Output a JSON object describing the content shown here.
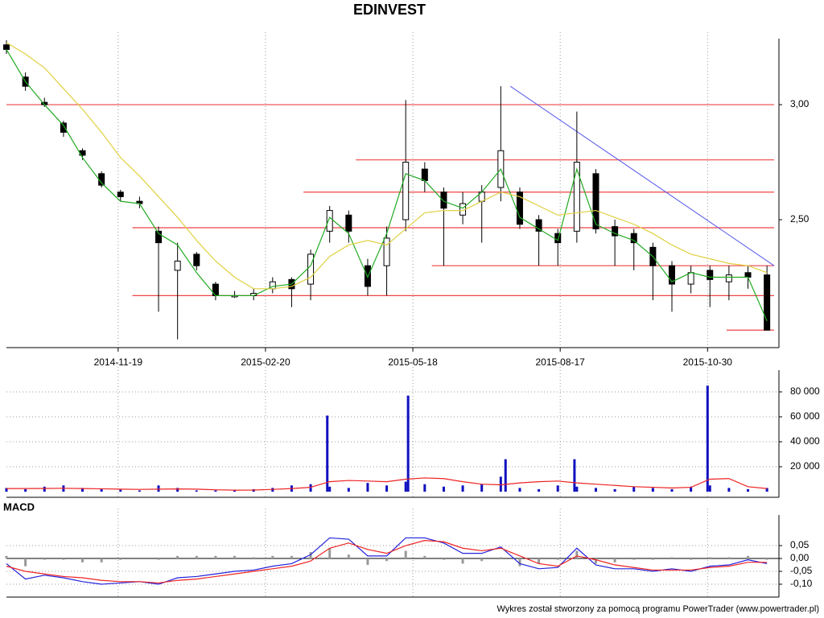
{
  "chart_data": [
    {
      "type": "candlestick",
      "title": "EDINVEST",
      "x": [
        0,
        8,
        16,
        24,
        32,
        40,
        48,
        56,
        64,
        72,
        80,
        88,
        96,
        104,
        112,
        120,
        128,
        136,
        144,
        152,
        160,
        168,
        176,
        184,
        192,
        200,
        208,
        216,
        224,
        232,
        240,
        248,
        256,
        264,
        272,
        280,
        288,
        296,
        304,
        312,
        320
      ],
      "open": [
        3.26,
        3.12,
        3.01,
        2.92,
        2.8,
        2.7,
        2.62,
        2.58,
        2.45,
        2.28,
        2.35,
        2.22,
        2.17,
        2.17,
        2.2,
        2.24,
        2.22,
        2.45,
        2.52,
        2.3,
        2.3,
        2.5,
        2.72,
        2.62,
        2.52,
        2.58,
        2.64,
        2.62,
        2.5,
        2.44,
        2.45,
        2.7,
        2.47,
        2.44,
        2.38,
        2.3,
        2.22,
        2.28,
        2.23,
        2.27,
        2.26
      ],
      "high": [
        3.28,
        3.14,
        3.03,
        2.93,
        2.81,
        2.71,
        2.63,
        2.6,
        2.47,
        2.4,
        2.36,
        2.23,
        2.19,
        2.2,
        2.25,
        2.25,
        2.37,
        2.56,
        2.54,
        2.33,
        2.47,
        3.02,
        2.75,
        2.64,
        2.62,
        2.65,
        3.08,
        2.64,
        2.52,
        2.46,
        2.97,
        2.72,
        2.5,
        2.46,
        2.4,
        2.32,
        2.3,
        2.3,
        2.3,
        2.3,
        2.3
      ],
      "low": [
        3.22,
        3.06,
        2.99,
        2.86,
        2.76,
        2.64,
        2.58,
        2.55,
        2.1,
        1.98,
        2.28,
        2.15,
        2.16,
        2.15,
        2.18,
        2.12,
        2.15,
        2.4,
        2.4,
        2.17,
        2.17,
        2.45,
        2.62,
        2.3,
        2.48,
        2.4,
        2.58,
        2.46,
        2.3,
        2.3,
        2.4,
        2.44,
        2.3,
        2.28,
        2.15,
        2.1,
        2.18,
        2.12,
        2.15,
        2.2,
        2.02
      ],
      "close": [
        3.24,
        3.08,
        3.0,
        2.88,
        2.78,
        2.65,
        2.6,
        2.57,
        2.4,
        2.32,
        2.3,
        2.17,
        2.17,
        2.18,
        2.23,
        2.2,
        2.35,
        2.54,
        2.45,
        2.21,
        2.42,
        2.75,
        2.67,
        2.55,
        2.57,
        2.62,
        2.8,
        2.48,
        2.45,
        2.4,
        2.75,
        2.46,
        2.43,
        2.4,
        2.3,
        2.22,
        2.27,
        2.24,
        2.26,
        2.25,
        2.02
      ],
      "lines": [
        {
          "color": "#22aa22",
          "values": [
            3.24,
            3.1,
            3.0,
            2.91,
            2.77,
            2.66,
            2.58,
            2.57,
            2.44,
            2.39,
            2.27,
            2.17,
            2.17,
            2.17,
            2.21,
            2.22,
            2.3,
            2.51,
            2.44,
            2.25,
            2.44,
            2.7,
            2.67,
            2.58,
            2.55,
            2.62,
            2.72,
            2.51,
            2.46,
            2.41,
            2.72,
            2.48,
            2.44,
            2.41,
            2.34,
            2.23,
            2.27,
            2.25,
            2.25,
            2.25,
            2.06
          ]
        },
        {
          "color": "#e0d040",
          "values": [
            3.27,
            3.22,
            3.16,
            3.07,
            2.98,
            2.88,
            2.77,
            2.69,
            2.6,
            2.51,
            2.41,
            2.32,
            2.25,
            2.2,
            2.2,
            2.21,
            2.25,
            2.34,
            2.39,
            2.41,
            2.39,
            2.46,
            2.53,
            2.54,
            2.54,
            2.58,
            2.62,
            2.6,
            2.56,
            2.52,
            2.53,
            2.54,
            2.51,
            2.48,
            2.44,
            2.39,
            2.35,
            2.33,
            2.31,
            2.3,
            2.27
          ]
        }
      ],
      "hlines": [
        {
          "y": 3.0,
          "x0": 0,
          "x1": 323
        },
        {
          "y": 2.76,
          "x0": 147,
          "x1": 323
        },
        {
          "y": 2.62,
          "x0": 125,
          "x1": 323
        },
        {
          "y": 2.465,
          "x0": 53,
          "x1": 323
        },
        {
          "y": 2.3,
          "x0": 179,
          "x1": 323
        },
        {
          "y": 2.17,
          "x0": 53,
          "x1": 323
        },
        {
          "y": 2.02,
          "x0": 303,
          "x1": 323
        }
      ],
      "hline_color": "#ee4444",
      "trend": {
        "x": [
          212,
          323
        ],
        "y": [
          3.08,
          2.3
        ],
        "color": "#5555ee"
      },
      "xlim": [
        0,
        323
      ],
      "xticks": [
        {
          "value": 47,
          "label": "2014-11-19"
        },
        {
          "value": 109,
          "label": "2015-02-20"
        },
        {
          "value": 171,
          "label": "2015-05-18"
        },
        {
          "value": 233,
          "label": "2015-08-17"
        },
        {
          "value": 295,
          "label": "2015-10-30"
        }
      ],
      "ylim": [
        1.944,
        3.287
      ],
      "yticks": [
        {
          "value": 2.5,
          "label": "2,50"
        },
        {
          "value": 3,
          "label": "3,00"
        }
      ]
    },
    {
      "type": "bar",
      "color": "#1010c0",
      "x": [
        0,
        8,
        16,
        24,
        32,
        40,
        48,
        56,
        64,
        72,
        80,
        88,
        96,
        104,
        112,
        120,
        128,
        135,
        136,
        144,
        152,
        160,
        168,
        169,
        176,
        184,
        192,
        200,
        208,
        210,
        216,
        224,
        232,
        239,
        240,
        248,
        256,
        264,
        272,
        280,
        288,
        295,
        296,
        304,
        312,
        320
      ],
      "values": [
        3000,
        2000,
        4000,
        5000,
        3000,
        2000,
        1500,
        1000,
        5000,
        3000,
        1000,
        1000,
        1000,
        2000,
        3000,
        5000,
        6000,
        61000,
        4000,
        3000,
        7000,
        5000,
        8000,
        77000,
        6000,
        4000,
        5000,
        6000,
        12000,
        26000,
        3000,
        2000,
        5000,
        26000,
        4000,
        3000,
        2000,
        4000,
        3000,
        2000,
        4000,
        85000,
        5000,
        3000,
        2000,
        3000
      ],
      "lines": [
        {
          "color": "#ee2222",
          "x": [
            0,
            8,
            16,
            24,
            32,
            40,
            48,
            56,
            64,
            72,
            80,
            88,
            96,
            104,
            112,
            120,
            128,
            136,
            144,
            152,
            160,
            168,
            176,
            184,
            192,
            200,
            208,
            216,
            224,
            232,
            240,
            248,
            256,
            264,
            272,
            280,
            288,
            296,
            304,
            312,
            320
          ],
          "values": [
            2500,
            2500,
            2600,
            2700,
            2500,
            2300,
            2000,
            1800,
            2000,
            2200,
            2000,
            1500,
            1200,
            1300,
            1800,
            2500,
            3500,
            8000,
            9000,
            8500,
            8000,
            10000,
            11000,
            10500,
            8000,
            6000,
            5500,
            7000,
            8000,
            8500,
            7000,
            6000,
            5000,
            4000,
            3500,
            3000,
            3500,
            10000,
            10500,
            4000,
            2500
          ]
        }
      ],
      "xlim": [
        0,
        323
      ],
      "ylim": [
        0,
        97400
      ],
      "yticks": [
        {
          "value": 20000,
          "label": "20 000"
        },
        {
          "value": 40000,
          "label": "40 000"
        },
        {
          "value": 60000,
          "label": "60 000"
        },
        {
          "value": 80000,
          "label": "80 000"
        }
      ],
      "grid": true
    },
    {
      "type": "line",
      "title": "MACD",
      "x": [
        0,
        8,
        16,
        24,
        32,
        40,
        48,
        56,
        64,
        72,
        80,
        88,
        96,
        104,
        112,
        120,
        128,
        136,
        144,
        152,
        160,
        168,
        176,
        184,
        192,
        200,
        208,
        216,
        224,
        232,
        240,
        248,
        256,
        264,
        272,
        280,
        288,
        296,
        304,
        312,
        320
      ],
      "series": [
        {
          "color": "#2222dd",
          "values": [
            -0.02,
            -0.08,
            -0.065,
            -0.075,
            -0.09,
            -0.1,
            -0.095,
            -0.09,
            -0.1,
            -0.075,
            -0.07,
            -0.06,
            -0.05,
            -0.045,
            -0.03,
            -0.02,
            0.015,
            0.08,
            0.075,
            0.01,
            0.01,
            0.08,
            0.08,
            0.06,
            0.02,
            0.02,
            0.045,
            -0.02,
            -0.04,
            -0.035,
            0.04,
            -0.025,
            -0.04,
            -0.04,
            -0.05,
            -0.04,
            -0.05,
            -0.03,
            -0.025,
            -0.005,
            -0.02
          ]
        },
        {
          "color": "#ee2222",
          "values": [
            -0.03,
            -0.05,
            -0.06,
            -0.07,
            -0.075,
            -0.085,
            -0.09,
            -0.09,
            -0.095,
            -0.085,
            -0.08,
            -0.07,
            -0.06,
            -0.05,
            -0.04,
            -0.03,
            -0.01,
            0.04,
            0.06,
            0.035,
            0.02,
            0.05,
            0.07,
            0.065,
            0.04,
            0.03,
            0.04,
            0.01,
            -0.02,
            -0.03,
            0.01,
            -0.005,
            -0.025,
            -0.035,
            -0.045,
            -0.045,
            -0.045,
            -0.035,
            -0.03,
            -0.015,
            -0.015
          ]
        }
      ],
      "histogram": {
        "color": "#999999",
        "values": [
          0.01,
          -0.03,
          -0.005,
          -0.005,
          -0.015,
          -0.015,
          -0.005,
          0,
          -0.005,
          0.01,
          0.01,
          0.01,
          0.01,
          0.005,
          0.01,
          0.01,
          0.025,
          0.04,
          0.015,
          -0.025,
          -0.01,
          0.03,
          0.01,
          -0.005,
          -0.02,
          -0.01,
          0.005,
          -0.03,
          -0.02,
          -0.005,
          0.03,
          -0.02,
          -0.015,
          -0.005,
          -0.005,
          0.005,
          -0.005,
          0.005,
          0.005,
          0.01,
          -0.005
        ]
      },
      "xlim": [
        0,
        323
      ],
      "ylim": [
        -0.15,
        0.169
      ],
      "yticks": [
        {
          "value": 0.05,
          "label": "0,05"
        },
        {
          "value": 0,
          "label": "0,00"
        },
        {
          "value": -0.05,
          "label": "-0,05"
        },
        {
          "value": -0.1,
          "label": "-0,10"
        }
      ],
      "grid": true
    }
  ],
  "footer": "Wykres został stworzony za pomocą programu PowerTrader (www.powertrader.pl)"
}
